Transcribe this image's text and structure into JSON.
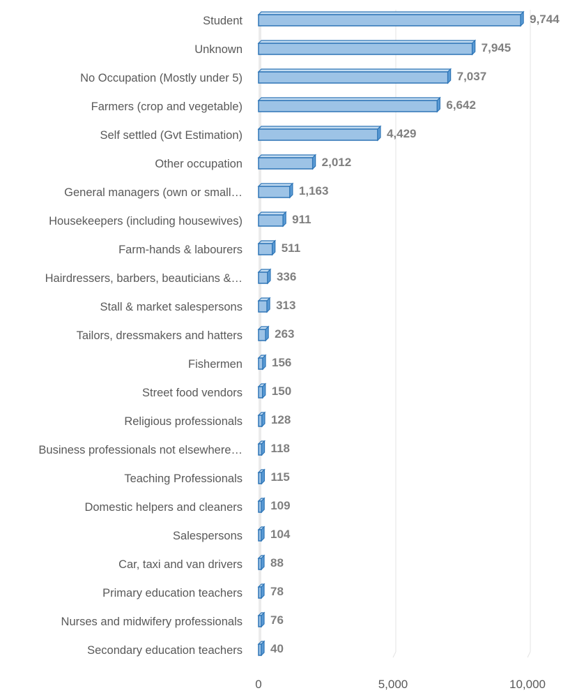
{
  "chart_data": {
    "type": "bar",
    "orientation": "horizontal",
    "style": "3d",
    "categories": [
      "Student",
      "Unknown",
      "No Occupation (Mostly under 5)",
      "Farmers (crop and vegetable)",
      "Self settled (Gvt Estimation)",
      "Other occupation",
      "General managers (own or small…",
      "Housekeepers (including housewives)",
      "Farm-hands & labourers",
      "Hairdressers, barbers, beauticians &…",
      "Stall & market salespersons",
      "Tailors, dressmakers and hatters",
      "Fishermen",
      "Street food vendors",
      "Religious professionals",
      "Business professionals not elsewhere…",
      "Teaching Professionals",
      "Domestic helpers and cleaners",
      "Salespersons",
      "Car, taxi and van drivers",
      "Primary education teachers",
      "Nurses and midwifery professionals",
      "Secondary education teachers"
    ],
    "values": [
      9744,
      7945,
      7037,
      6642,
      4429,
      2012,
      1163,
      911,
      511,
      336,
      313,
      263,
      156,
      150,
      128,
      118,
      115,
      109,
      104,
      88,
      78,
      76,
      40
    ],
    "value_labels": [
      "9,744",
      "7,945",
      "7,037",
      "6,642",
      "4,429",
      "2,012",
      "1,163",
      "911",
      "511",
      "336",
      "313",
      "263",
      "156",
      "150",
      "128",
      "118",
      "115",
      "109",
      "104",
      "88",
      "78",
      "76",
      "40"
    ],
    "xlim": [
      0,
      10000
    ],
    "x_ticks": [
      0,
      5000,
      10000
    ],
    "x_tick_labels": [
      "0",
      "5,000",
      "10,000"
    ],
    "grid": true,
    "legend": "none",
    "colors": {
      "bar_front": "#9dc3e6",
      "bar_top": "#c5ddf2",
      "bar_side": "#5b9bd5",
      "bar_edge": "#2e75b6",
      "grid": "#e3e3e3",
      "value_label": "#7f7f7f",
      "category_label": "#595959"
    }
  }
}
